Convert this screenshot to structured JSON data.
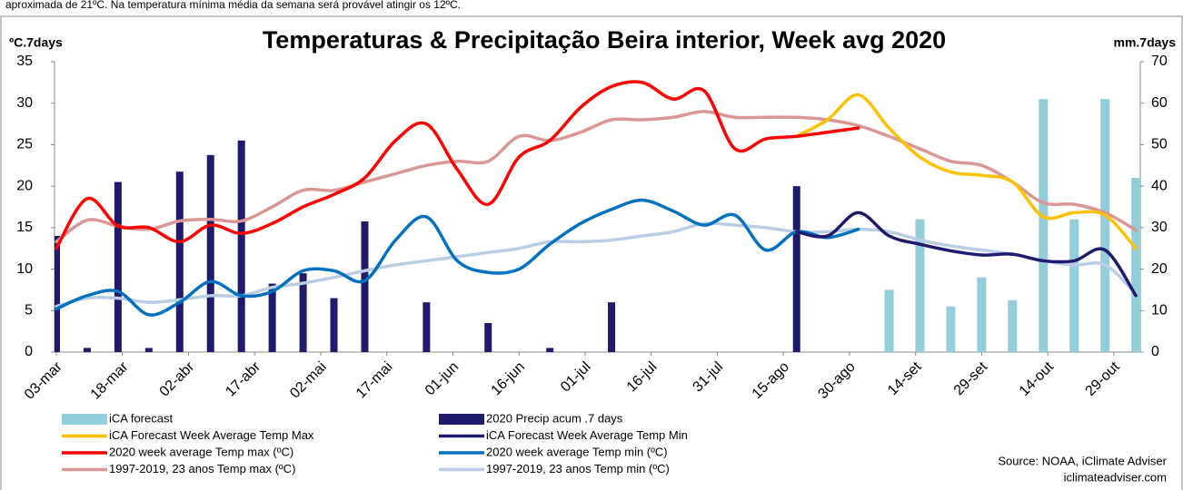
{
  "header_text": "aproximada de 21ºC. Na temperatura mínima média da semana será provável atingir os 12ºC.",
  "chart_data": {
    "type": "combo",
    "title": "Temperaturas & Precipitação Beira interior, Week avg 2020",
    "y_label": "ºC.7days",
    "y2_label": "mm.7days",
    "source": [
      "Source: NOAA, iClimate Adviser",
      "iclimateadviser.com"
    ],
    "x": [
      0,
      7,
      14,
      21,
      28,
      35,
      42,
      49,
      56,
      63,
      70,
      77,
      84,
      91,
      98,
      105,
      112,
      119,
      126,
      133,
      140,
      147,
      154,
      161,
      168,
      175,
      182,
      189,
      196,
      203,
      210,
      217,
      224,
      231,
      238,
      245
    ],
    "xlim": [
      0,
      246
    ],
    "xticks": [
      {
        "value": 0,
        "label": "03-mar"
      },
      {
        "value": 15,
        "label": "18-mar"
      },
      {
        "value": 30,
        "label": "02-abr"
      },
      {
        "value": 45,
        "label": "17-abr"
      },
      {
        "value": 60,
        "label": "02-mai"
      },
      {
        "value": 75,
        "label": "17-mai"
      },
      {
        "value": 90,
        "label": "01-jun"
      },
      {
        "value": 105,
        "label": "16-jun"
      },
      {
        "value": 120,
        "label": "01-jul"
      },
      {
        "value": 135,
        "label": "16-jul"
      },
      {
        "value": 150,
        "label": "31-jul"
      },
      {
        "value": 165,
        "label": "15-ago"
      },
      {
        "value": 180,
        "label": "30-ago"
      },
      {
        "value": 195,
        "label": "14-set"
      },
      {
        "value": 210,
        "label": "29-set"
      },
      {
        "value": 225,
        "label": "14-out"
      },
      {
        "value": 240,
        "label": "29-out"
      }
    ],
    "ylim": [
      0,
      35
    ],
    "yticks": [
      0,
      5,
      10,
      15,
      20,
      25,
      30,
      35
    ],
    "y2lim": [
      0,
      70
    ],
    "y2ticks": [
      0,
      10,
      20,
      30,
      40,
      50,
      60,
      70
    ],
    "series": [
      {
        "name": "iCA forecast",
        "type": "bar",
        "axis": "y2",
        "color": "#92cddc",
        "values": [
          null,
          null,
          null,
          null,
          null,
          null,
          null,
          null,
          null,
          null,
          null,
          null,
          null,
          null,
          null,
          null,
          null,
          null,
          null,
          null,
          null,
          null,
          null,
          null,
          null,
          null,
          null,
          15,
          32,
          11,
          18,
          12.5,
          61,
          32,
          61,
          42
        ]
      },
      {
        "name": "2020 Precip acum .7 days",
        "type": "bar",
        "axis": "y2",
        "color": "#1f1a6e",
        "values": [
          28,
          1,
          41,
          1,
          43.5,
          47.5,
          51,
          16.5,
          19,
          13,
          31.5,
          0,
          12,
          0,
          7,
          0,
          1,
          0,
          12,
          null,
          null,
          null,
          null,
          null,
          40,
          null,
          null,
          null,
          null,
          null,
          null,
          null,
          null,
          null,
          null,
          null
        ]
      },
      {
        "name": "iCA Forecast Week Average Temp Max",
        "type": "line",
        "color": "#ffc000",
        "values": [
          null,
          null,
          null,
          null,
          null,
          null,
          null,
          null,
          null,
          null,
          null,
          null,
          null,
          null,
          null,
          null,
          null,
          null,
          null,
          null,
          null,
          null,
          null,
          null,
          26,
          28,
          31,
          27,
          23.5,
          21.7,
          21.3,
          20.5,
          16.3,
          16.8,
          16.5,
          12.5
        ]
      },
      {
        "name": "iCA Forecast Week Average Temp Min",
        "type": "line",
        "color": "#1f1a6e",
        "values": [
          null,
          null,
          null,
          null,
          null,
          null,
          null,
          null,
          null,
          null,
          null,
          null,
          null,
          null,
          null,
          null,
          null,
          null,
          null,
          null,
          null,
          null,
          null,
          null,
          14.5,
          14,
          16.8,
          14,
          13,
          12.2,
          11.7,
          11.8,
          11,
          11,
          12.3,
          6.8
        ]
      },
      {
        "name": "2020 week average Temp max (ºC)",
        "type": "line",
        "color": "#ff0000",
        "values": [
          12.5,
          18.5,
          15.2,
          15,
          13.3,
          15.3,
          14.3,
          15.5,
          17.5,
          19,
          21,
          25.5,
          27.5,
          22,
          17.8,
          23.5,
          25.5,
          29.5,
          32,
          32.5,
          30.5,
          31.5,
          24.5,
          25.7,
          26,
          26.5,
          27,
          null,
          null,
          null,
          null,
          null,
          null,
          null,
          null,
          null
        ]
      },
      {
        "name": "2020 week average Temp min (ºC)",
        "type": "line",
        "color": "#0070c0",
        "values": [
          5.2,
          6.8,
          7.3,
          4.5,
          6,
          8.5,
          6.8,
          7.3,
          9.8,
          9.8,
          8.6,
          13.5,
          16.3,
          11,
          9.6,
          10,
          13,
          15.5,
          17.2,
          18.3,
          17,
          15.3,
          16.5,
          12.3,
          14.5,
          13.8,
          14.8,
          null,
          null,
          null,
          null,
          null,
          null,
          null,
          null,
          null
        ]
      },
      {
        "name": "1997-2019, 23 anos Temp max (ºC)",
        "type": "line",
        "color": "#d99694",
        "values": [
          13.3,
          15.9,
          15.2,
          14.8,
          15.8,
          16,
          15.8,
          17.5,
          19.5,
          19.5,
          20.5,
          21.5,
          22.5,
          23,
          23,
          26,
          25.5,
          26.5,
          28,
          28,
          28.3,
          29,
          28.3,
          28.3,
          28.3,
          28,
          27.3,
          26,
          24.5,
          23,
          22.5,
          20.5,
          18,
          17.8,
          16.8,
          14.7
        ]
      },
      {
        "name": "1997-2019, 23 anos Temp min (ºC)",
        "type": "line",
        "color": "#b9cde5",
        "values": [
          5.5,
          6.5,
          6.5,
          6,
          6.3,
          6.8,
          6.8,
          7.8,
          8.3,
          9,
          9.8,
          10.5,
          11,
          11.5,
          12,
          12.5,
          13.3,
          13.3,
          13.5,
          14,
          14.5,
          15.5,
          15.3,
          15,
          14.5,
          14.5,
          14.8,
          14.5,
          13.5,
          12.8,
          12.3,
          11.8,
          11,
          10.5,
          10.5,
          7
        ]
      }
    ]
  }
}
